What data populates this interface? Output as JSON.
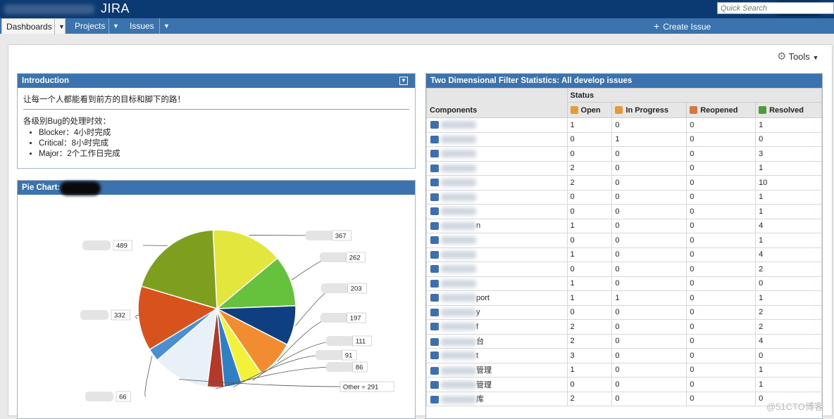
{
  "app": {
    "title": "JIRA"
  },
  "nav": {
    "dashboards": "Dashboards",
    "projects": "Projects",
    "issues": "Issues",
    "create_issue": "Create Issue",
    "search_placeholder": "Quick Search"
  },
  "tools_label": "Tools",
  "intro": {
    "title": "Introduction",
    "motto": "让每一个人都能看到前方的目标和脚下的路！",
    "sla_heading": "各级别Bug的处理时效：",
    "sla_items": [
      "Blocker：4小时完成",
      "Critical：8小时完成",
      "Major：2个工作日完成"
    ]
  },
  "pie": {
    "title": "Pie Chart:"
  },
  "chart_data": {
    "type": "pie",
    "title": "Pie Chart:",
    "slices": [
      {
        "label": "",
        "value": 367,
        "color": "#e3e63d"
      },
      {
        "label": "",
        "value": 262,
        "color": "#66c23c"
      },
      {
        "label": "",
        "value": 203,
        "color": "#0e3f80"
      },
      {
        "label": "",
        "value": 197,
        "color": "#f18c30"
      },
      {
        "label": "",
        "value": 111,
        "color": "#f2f23a"
      },
      {
        "label": "",
        "value": 91,
        "color": "#2f80c3"
      },
      {
        "label": "",
        "value": 86,
        "color": "#b33a2a"
      },
      {
        "label": "Other = 291",
        "value": 291,
        "color": "#e8f1f8"
      },
      {
        "label": "",
        "value": 66,
        "color": "#4a8fcf"
      },
      {
        "label": "",
        "value": 332,
        "color": "#d8521e"
      },
      {
        "label": "",
        "value": 489,
        "color": "#7e9e1e"
      }
    ]
  },
  "twod": {
    "title": "Two Dimensional Filter Statistics: All develop issues",
    "components_header": "Components",
    "status_header": "Status",
    "columns": [
      {
        "label": "Open",
        "color": "#e39b3a"
      },
      {
        "label": "In Progress",
        "color": "#e39b3a"
      },
      {
        "label": "Reopened",
        "color": "#d9753a"
      },
      {
        "label": "Resolved",
        "color": "#4d9a3a"
      }
    ],
    "rows": [
      {
        "name": "",
        "values": [
          "1",
          "0",
          "0",
          "1"
        ]
      },
      {
        "name": "",
        "values": [
          "0",
          "1",
          "0",
          "0"
        ]
      },
      {
        "name": "",
        "values": [
          "0",
          "0",
          "0",
          "3"
        ]
      },
      {
        "name": "",
        "values": [
          "2",
          "0",
          "0",
          "1"
        ]
      },
      {
        "name": "",
        "values": [
          "2",
          "0",
          "0",
          "10"
        ]
      },
      {
        "name": "",
        "values": [
          "0",
          "0",
          "0",
          "1"
        ]
      },
      {
        "name": "",
        "values": [
          "0",
          "0",
          "0",
          "1"
        ]
      },
      {
        "name": "n",
        "values": [
          "1",
          "0",
          "0",
          "4"
        ]
      },
      {
        "name": "",
        "values": [
          "0",
          "0",
          "0",
          "1"
        ]
      },
      {
        "name": "",
        "values": [
          "1",
          "0",
          "0",
          "4"
        ]
      },
      {
        "name": "",
        "values": [
          "0",
          "0",
          "0",
          "2"
        ]
      },
      {
        "name": "",
        "values": [
          "1",
          "0",
          "0",
          "0"
        ]
      },
      {
        "name": "port",
        "values": [
          "1",
          "1",
          "0",
          "1"
        ]
      },
      {
        "name": "y",
        "values": [
          "0",
          "0",
          "0",
          "2"
        ]
      },
      {
        "name": "f",
        "values": [
          "2",
          "0",
          "0",
          "2"
        ]
      },
      {
        "name": "台",
        "values": [
          "2",
          "0",
          "0",
          "4"
        ]
      },
      {
        "name": "t",
        "values": [
          "3",
          "0",
          "0",
          "0"
        ]
      },
      {
        "name": "管理",
        "values": [
          "1",
          "0",
          "0",
          "1"
        ]
      },
      {
        "name": "管理",
        "values": [
          "0",
          "0",
          "0",
          "1"
        ]
      },
      {
        "name": "库",
        "values": [
          "2",
          "0",
          "0",
          "0"
        ]
      }
    ]
  },
  "watermark": "@51CTO博客"
}
